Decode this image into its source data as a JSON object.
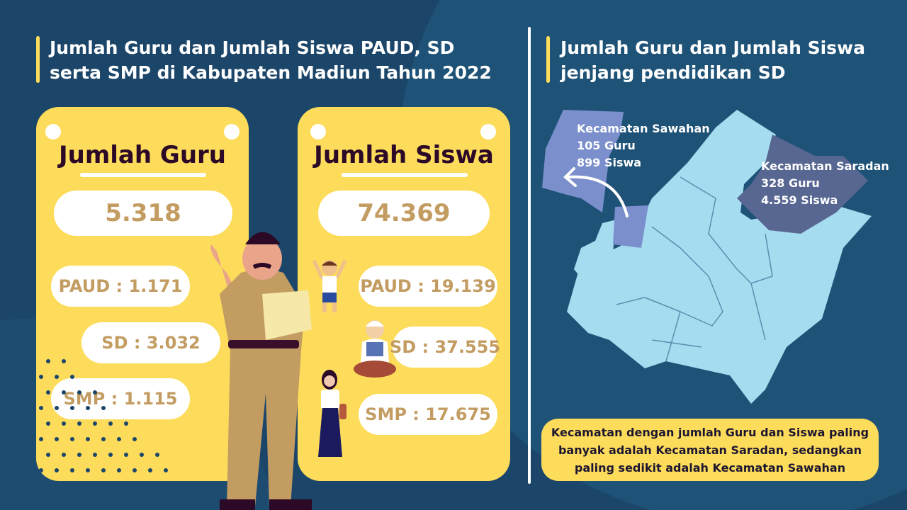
{
  "left_title": "Jumlah Guru dan Jumlah Siswa PAUD, SD serta SMP di Kabupaten Madiun Tahun 2022",
  "right_title": "Jumlah Guru dan Jumlah Siswa jenjang pendidikan SD",
  "guru_card": {
    "heading": "Jumlah Guru",
    "total": "5.318",
    "items": [
      "PAUD : 1.171",
      "SD : 3.032",
      "SMP : 1.115"
    ]
  },
  "siswa_card": {
    "heading": "Jumlah Siswa",
    "total": "74.369",
    "items": [
      "PAUD : 19.139",
      "SD : 37.555",
      "SMP : 17.675"
    ]
  },
  "map": {
    "sawahan": {
      "name": "Kecamatan Sawahan",
      "guru": "105 Guru",
      "siswa": "899 Siswa"
    },
    "saradan": {
      "name": "Kecamatan Saradan",
      "guru": "328 Guru",
      "siswa": "4.559 Siswa"
    }
  },
  "note": "Kecamatan dengan jumlah Guru dan Siswa paling banyak adalah Kecamatan Saradan, sedangkan paling sedikit adalah Kecamatan Sawahan",
  "colors": {
    "background": "#1c4669",
    "card": "#fddc5c",
    "value_text": "#c39c62",
    "map_base": "#a6dcef",
    "sawahan": "#7b8fcc",
    "saradan": "#586792"
  }
}
